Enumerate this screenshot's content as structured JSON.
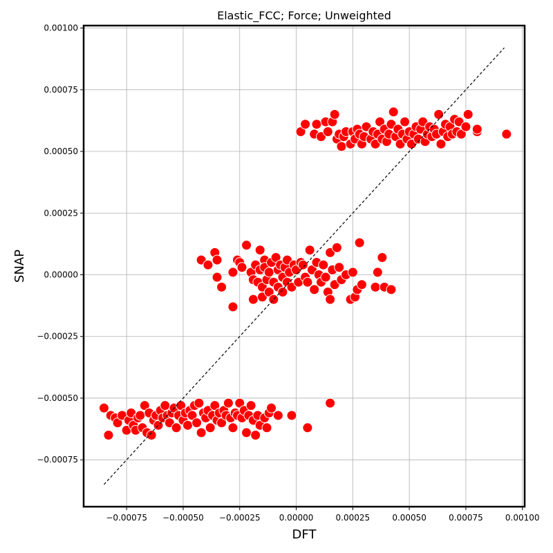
{
  "chart_data": {
    "type": "scatter",
    "title": "Elastic_FCC; Force; Unweighted",
    "xlabel": "DFT",
    "ylabel": "SNAP",
    "xlim": [
      -0.00094,
      0.00101
    ],
    "ylim": [
      -0.00094,
      0.00101
    ],
    "x_ticks": [
      -0.00075,
      -0.0005,
      -0.00025,
      0.0,
      0.00025,
      0.0005,
      0.00075,
      0.001
    ],
    "x_tick_labels": [
      "−0.00075",
      "−0.00050",
      "−0.00025",
      "0.00000",
      "0.00025",
      "0.00050",
      "0.00075",
      "0.00100"
    ],
    "y_ticks": [
      -0.00075,
      -0.0005,
      -0.00025,
      0.0,
      0.00025,
      0.0005,
      0.00075,
      0.001
    ],
    "y_tick_labels": [
      "−0.00075",
      "−0.00050",
      "−0.00025",
      "0.00000",
      "0.00025",
      "0.00050",
      "0.00075",
      "0.00100"
    ],
    "grid": true,
    "marker_color": "#ff0000",
    "marker_edge_color": "#ffffff",
    "reference_line": {
      "style": "dashed",
      "color": "#000000",
      "from": [
        -0.00085,
        -0.00085
      ],
      "to": [
        0.00092,
        0.00092
      ]
    },
    "series": [
      {
        "points": [
          [
            -0.00085,
            -0.00054
          ],
          [
            -0.00083,
            -0.00065
          ],
          [
            -0.00082,
            -0.00057
          ],
          [
            -0.0008,
            -0.00058
          ],
          [
            -0.00079,
            -0.0006
          ],
          [
            -0.00077,
            -0.00057
          ],
          [
            -0.00075,
            -0.00063
          ],
          [
            -0.00074,
            -0.00059
          ],
          [
            -0.00073,
            -0.00056
          ],
          [
            -0.00072,
            -0.00061
          ],
          [
            -0.00071,
            -0.00063
          ],
          [
            -0.0007,
            -0.00058
          ],
          [
            -0.00069,
            -0.00057
          ],
          [
            -0.00068,
            -0.00062
          ],
          [
            -0.00067,
            -0.00053
          ],
          [
            -0.00066,
            -0.00064
          ],
          [
            -0.00065,
            -0.00056
          ],
          [
            -0.00064,
            -0.00065
          ],
          [
            -0.00063,
            -0.00059
          ],
          [
            -0.00062,
            -0.00057
          ],
          [
            -0.00061,
            -0.00061
          ],
          [
            -0.0006,
            -0.00055
          ],
          [
            -0.00059,
            -0.00058
          ],
          [
            -0.00058,
            -0.00053
          ],
          [
            -0.00057,
            -0.00057
          ],
          [
            -0.00056,
            -0.0006
          ],
          [
            -0.00055,
            -0.00056
          ],
          [
            -0.00054,
            -0.00054
          ],
          [
            -0.00053,
            -0.00062
          ],
          [
            -0.00052,
            -0.00057
          ],
          [
            -0.00051,
            -0.00053
          ],
          [
            -0.0005,
            -0.00059
          ],
          [
            -0.00049,
            -0.00056
          ],
          [
            -0.00048,
            -0.00061
          ],
          [
            -0.00047,
            -0.00055
          ],
          [
            -0.00046,
            -0.00057
          ],
          [
            -0.00045,
            -0.00053
          ],
          [
            -0.00044,
            -0.0006
          ],
          [
            -0.00043,
            -0.00052
          ],
          [
            -0.00042,
            -0.00064
          ],
          [
            -0.00041,
            -0.00056
          ],
          [
            -0.0004,
            -0.00058
          ],
          [
            -0.00039,
            -0.00055
          ],
          [
            -0.00038,
            -0.00062
          ],
          [
            -0.00037,
            -0.00057
          ],
          [
            -0.00036,
            -0.00053
          ],
          [
            -0.00035,
            -0.00059
          ],
          [
            -0.00034,
            -0.00056
          ],
          [
            -0.00033,
            -0.0006
          ],
          [
            -0.00032,
            -0.00055
          ],
          [
            -0.00031,
            -0.00057
          ],
          [
            -0.0003,
            -0.00052
          ],
          [
            -0.00029,
            -0.00058
          ],
          [
            -0.00028,
            -0.00062
          ],
          [
            -0.00027,
            -0.00056
          ],
          [
            -0.00026,
            -0.00057
          ],
          [
            -0.00025,
            -0.00052
          ],
          [
            -0.00024,
            -0.00058
          ],
          [
            -0.00023,
            -0.00055
          ],
          [
            -0.00022,
            -0.00064
          ],
          [
            -0.00021,
            -0.00057
          ],
          [
            -0.0002,
            -0.00053
          ],
          [
            -0.00019,
            -0.00059
          ],
          [
            -0.00018,
            -0.00065
          ],
          [
            -0.00017,
            -0.00057
          ],
          [
            -0.00016,
            -0.00061
          ],
          [
            -0.00014,
            -0.00058
          ],
          [
            -0.00013,
            -0.00062
          ],
          [
            -0.00012,
            -0.00056
          ],
          [
            -0.00011,
            -0.00054
          ],
          [
            -8e-05,
            -0.00057
          ],
          [
            -2e-05,
            -0.00057
          ],
          [
            5e-05,
            -0.00062
          ],
          [
            0.00015,
            -0.00052
          ],
          [
            -0.00042,
            6e-05
          ],
          [
            -0.00039,
            4e-05
          ],
          [
            -0.00036,
            9e-05
          ],
          [
            -0.00035,
            6e-05
          ],
          [
            -0.00035,
            -1e-05
          ],
          [
            -0.00033,
            -5e-05
          ],
          [
            -0.00028,
            -0.00013
          ],
          [
            -0.00028,
            1e-05
          ],
          [
            -0.00026,
            6e-05
          ],
          [
            -0.00025,
            5e-05
          ],
          [
            -0.00024,
            3e-05
          ],
          [
            -0.00022,
            0.00012
          ],
          [
            -0.0002,
            1e-05
          ],
          [
            -0.00019,
            -2e-05
          ],
          [
            -0.00019,
            -0.0001
          ],
          [
            -0.00018,
            4e-05
          ],
          [
            -0.00017,
            -3e-05
          ],
          [
            -0.00016,
            0.0001
          ],
          [
            -0.00016,
            2e-05
          ],
          [
            -0.00015,
            -5e-05
          ],
          [
            -0.00015,
            -9e-05
          ],
          [
            -0.00014,
            6e-05
          ],
          [
            -0.00014,
            3e-05
          ],
          [
            -0.00013,
            -2e-05
          ],
          [
            -0.00012,
            1e-05
          ],
          [
            -0.00012,
            -7e-05
          ],
          [
            -0.00011,
            5e-05
          ],
          [
            -0.0001,
            -3e-05
          ],
          [
            -0.0001,
            -0.0001
          ],
          [
            -9e-05,
            7e-05
          ],
          [
            -8e-05,
            2e-05
          ],
          [
            -8e-05,
            -5e-05
          ],
          [
            -7e-05,
            4e-05
          ],
          [
            -6e-05,
            -1e-05
          ],
          [
            -6e-05,
            -7e-05
          ],
          [
            -5e-05,
            3e-05
          ],
          [
            -4e-05,
            -3e-05
          ],
          [
            -4e-05,
            6e-05
          ],
          [
            -3e-05,
            1e-05
          ],
          [
            -2e-05,
            -5e-05
          ],
          [
            -1e-05,
            4e-05
          ],
          [
            0.0,
            2e-05
          ],
          [
            1e-05,
            -3e-05
          ],
          [
            2e-05,
            5e-05
          ],
          [
            3e-05,
            4e-05
          ],
          [
            4e-05,
            -1e-05
          ],
          [
            5e-05,
            -3e-05
          ],
          [
            6e-05,
            0.0001
          ],
          [
            7e-05,
            2e-05
          ],
          [
            8e-05,
            -6e-05
          ],
          [
            9e-05,
            5e-05
          ],
          [
            0.0001,
            0.0
          ],
          [
            0.00011,
            -3e-05
          ],
          [
            0.00012,
            4e-05
          ],
          [
            0.00013,
            -1e-05
          ],
          [
            0.00014,
            -7e-05
          ],
          [
            0.00015,
            9e-05
          ],
          [
            0.00015,
            -0.0001
          ],
          [
            0.00016,
            2e-05
          ],
          [
            0.00017,
            -4e-05
          ],
          [
            0.00018,
            0.00011
          ],
          [
            0.00019,
            3e-05
          ],
          [
            0.0002,
            -2e-05
          ],
          [
            0.00022,
            0.0
          ],
          [
            0.00024,
            -0.0001
          ],
          [
            0.00025,
            1e-05
          ],
          [
            0.00026,
            -9e-05
          ],
          [
            0.00027,
            -6e-05
          ],
          [
            0.00028,
            0.00013
          ],
          [
            0.00029,
            -4e-05
          ],
          [
            0.00035,
            -5e-05
          ],
          [
            0.00036,
            1e-05
          ],
          [
            0.00038,
            7e-05
          ],
          [
            0.00039,
            -5e-05
          ],
          [
            0.00042,
            -6e-05
          ],
          [
            2e-05,
            0.00058
          ],
          [
            4e-05,
            0.00061
          ],
          [
            8e-05,
            0.00057
          ],
          [
            9e-05,
            0.00061
          ],
          [
            0.00011,
            0.00056
          ],
          [
            0.00013,
            0.00062
          ],
          [
            0.00014,
            0.00058
          ],
          [
            0.00016,
            0.00062
          ],
          [
            0.00017,
            0.00065
          ],
          [
            0.00018,
            0.00055
          ],
          [
            0.00019,
            0.00057
          ],
          [
            0.0002,
            0.00052
          ],
          [
            0.00021,
            0.00056
          ],
          [
            0.00022,
            0.00058
          ],
          [
            0.00024,
            0.00053
          ],
          [
            0.00025,
            0.00058
          ],
          [
            0.00026,
            0.00055
          ],
          [
            0.00027,
            0.00059
          ],
          [
            0.00028,
            0.00057
          ],
          [
            0.00029,
            0.00053
          ],
          [
            0.0003,
            0.00056
          ],
          [
            0.00031,
            0.0006
          ],
          [
            0.00033,
            0.00055
          ],
          [
            0.00034,
            0.00058
          ],
          [
            0.00035,
            0.00053
          ],
          [
            0.00036,
            0.00057
          ],
          [
            0.00037,
            0.00062
          ],
          [
            0.00038,
            0.00055
          ],
          [
            0.00039,
            0.00059
          ],
          [
            0.0004,
            0.00054
          ],
          [
            0.00041,
            0.00057
          ],
          [
            0.00042,
            0.00061
          ],
          [
            0.00043,
            0.00066
          ],
          [
            0.00044,
            0.00056
          ],
          [
            0.00045,
            0.00059
          ],
          [
            0.00046,
            0.00053
          ],
          [
            0.00047,
            0.00057
          ],
          [
            0.00048,
            0.00062
          ],
          [
            0.00049,
            0.00055
          ],
          [
            0.0005,
            0.00058
          ],
          [
            0.00051,
            0.00053
          ],
          [
            0.00052,
            0.00057
          ],
          [
            0.00053,
            0.0006
          ],
          [
            0.00054,
            0.00055
          ],
          [
            0.00055,
            0.00059
          ],
          [
            0.00056,
            0.00062
          ],
          [
            0.00057,
            0.00054
          ],
          [
            0.00058,
            0.00057
          ],
          [
            0.00059,
            0.0006
          ],
          [
            0.0006,
            0.00056
          ],
          [
            0.00061,
            0.00059
          ],
          [
            0.00062,
            0.00057
          ],
          [
            0.00063,
            0.00065
          ],
          [
            0.00064,
            0.00053
          ],
          [
            0.00065,
            0.00058
          ],
          [
            0.00066,
            0.00061
          ],
          [
            0.00067,
            0.00056
          ],
          [
            0.00068,
            0.0006
          ],
          [
            0.00069,
            0.00057
          ],
          [
            0.0007,
            0.00063
          ],
          [
            0.00071,
            0.00058
          ],
          [
            0.00072,
            0.00062
          ],
          [
            0.00073,
            0.00057
          ],
          [
            0.00075,
            0.0006
          ],
          [
            0.00076,
            0.00065
          ],
          [
            0.0008,
            0.00058
          ],
          [
            0.0008,
            0.00059
          ],
          [
            0.00093,
            0.00057
          ]
        ]
      }
    ]
  }
}
